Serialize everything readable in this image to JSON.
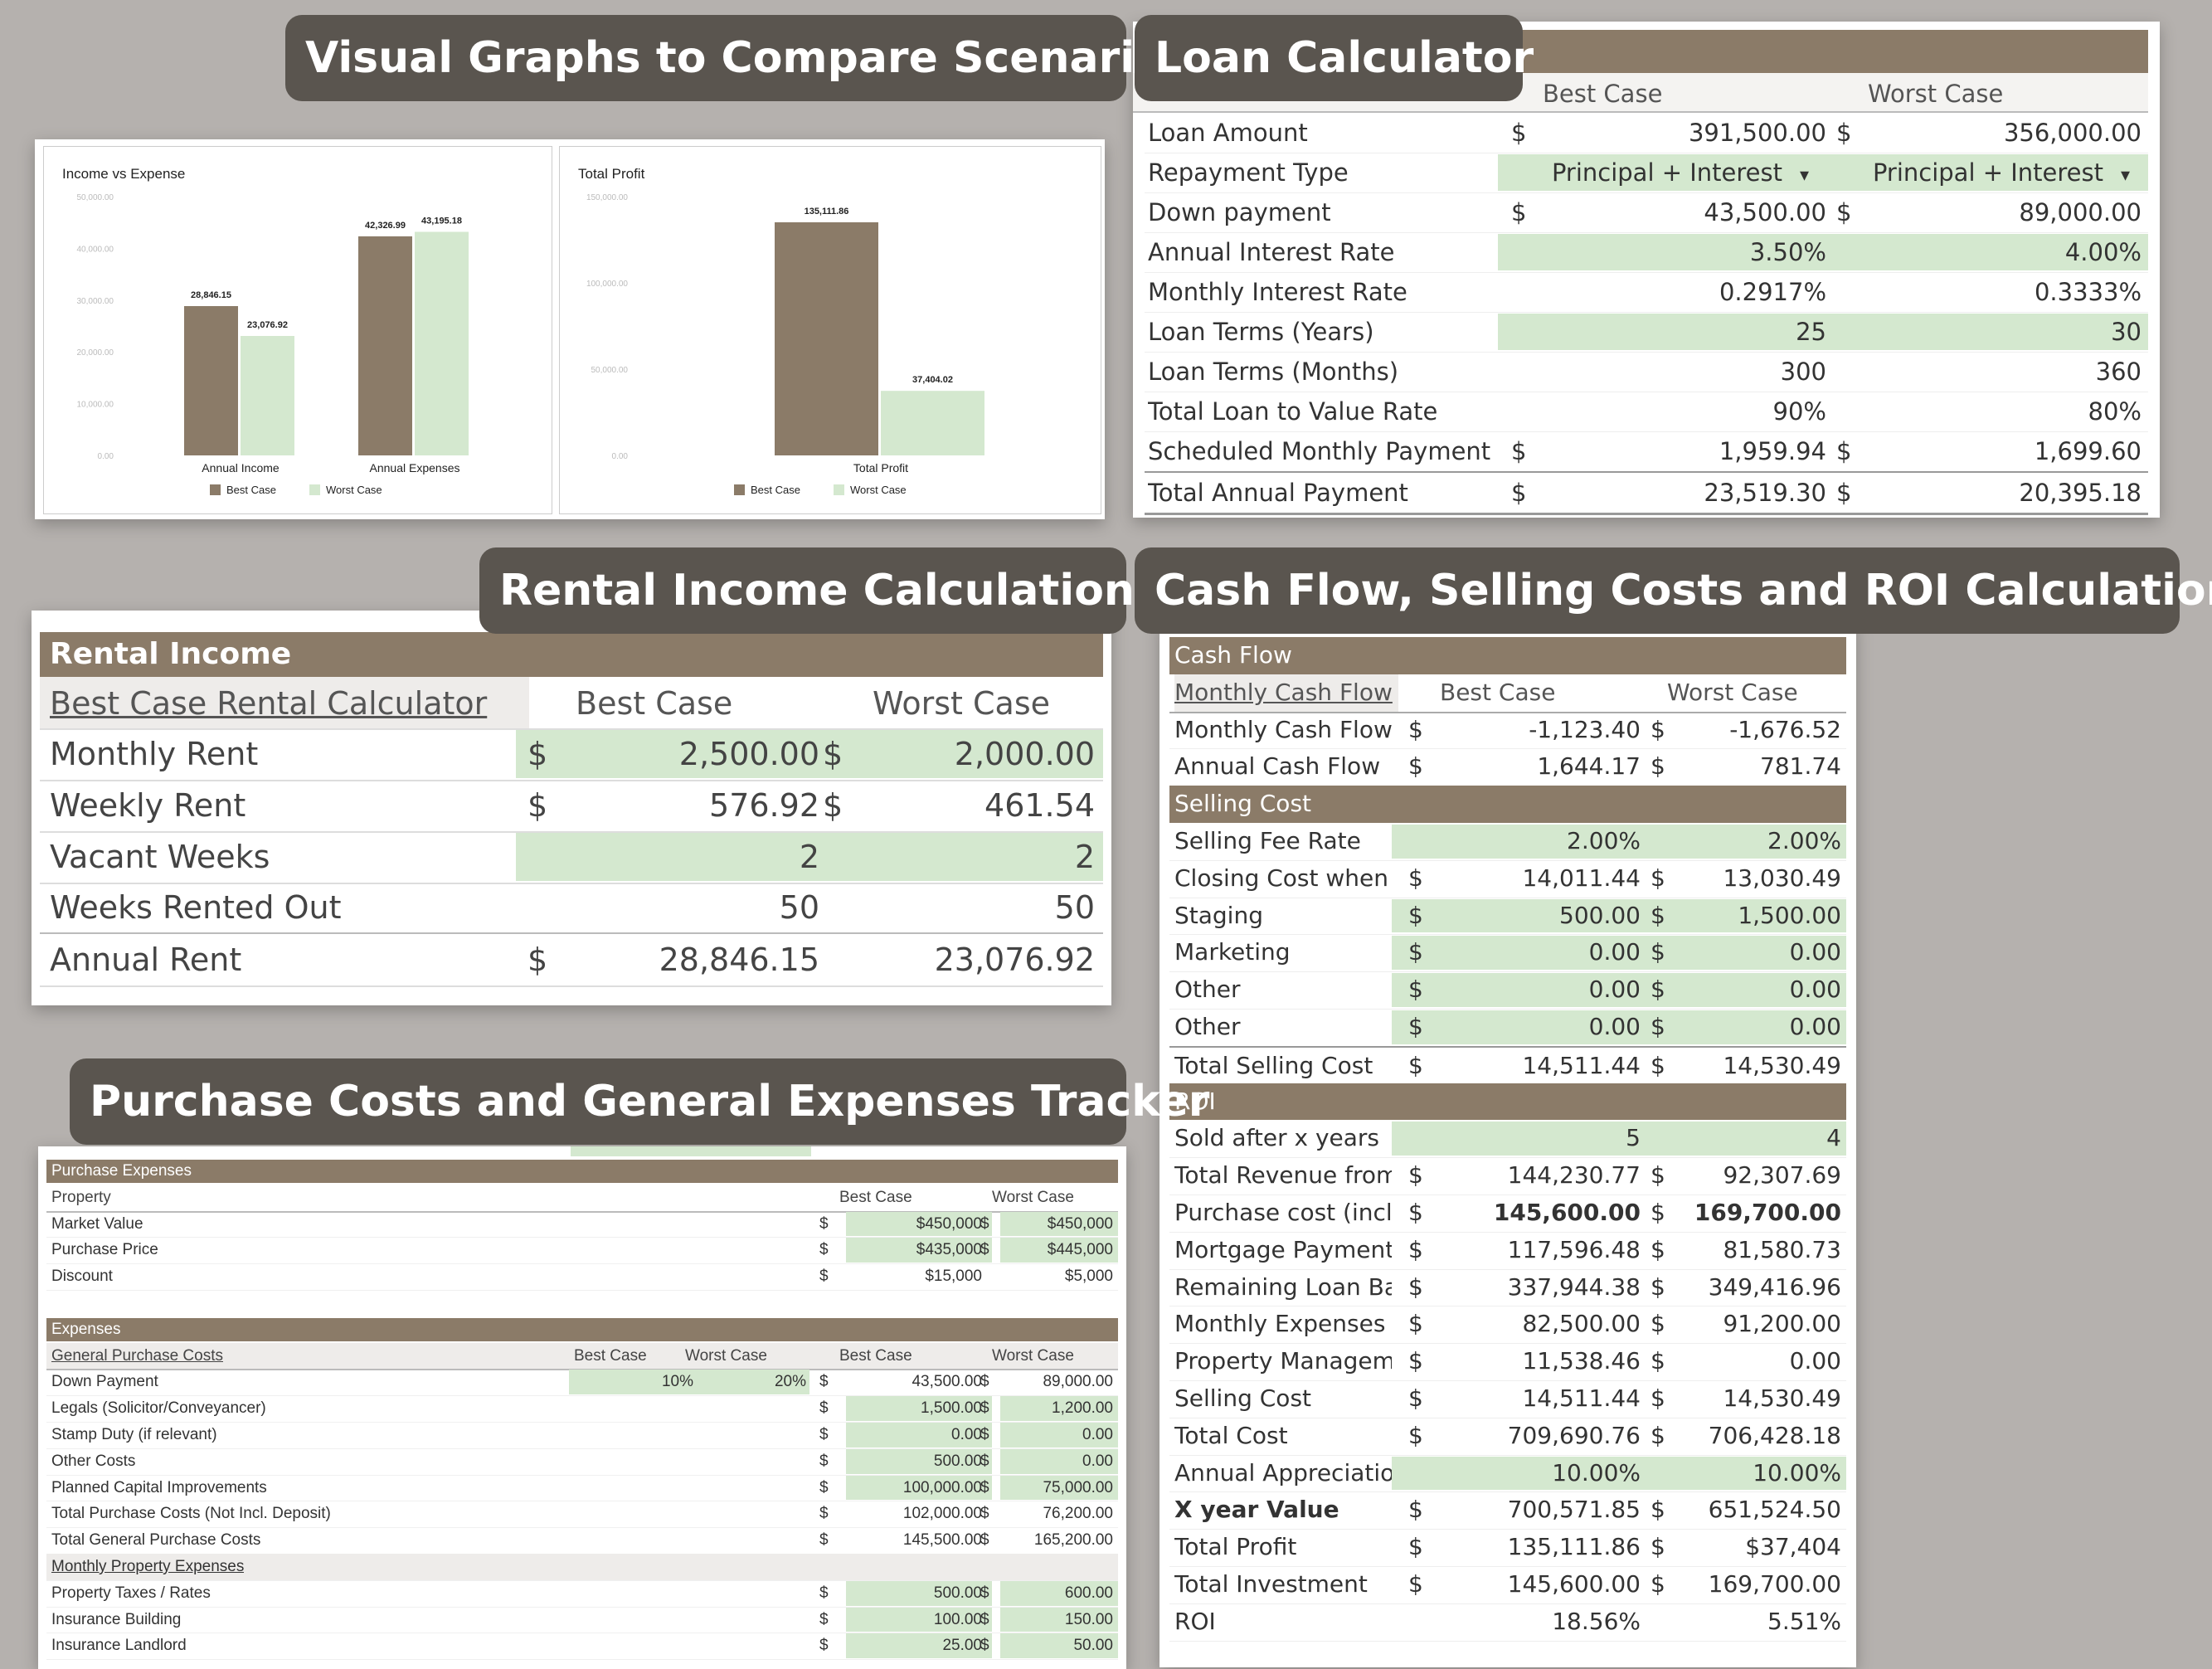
{
  "headings": {
    "graphs": "Visual Graphs to Compare Scenarios",
    "loan": "Loan Calculator",
    "rental": "Rental Income Calculations",
    "cashflow": "Cash Flow, Selling Costs and ROI Calculations",
    "purchase": "Purchase Costs and General Expenses Tracker"
  },
  "legend": {
    "best": "Best Case",
    "worst": "Worst Case"
  },
  "colors": {
    "brown": "#8b7b68",
    "green": "#d4e8cf",
    "tag_bg": "#5a554f"
  },
  "chart_data": [
    {
      "type": "bar",
      "title": "Income vs Expense",
      "categories": [
        "Annual Income",
        "Annual Expenses"
      ],
      "series": [
        {
          "name": "Best Case",
          "values": [
            28846.15,
            42326.99
          ]
        },
        {
          "name": "Worst Case",
          "values": [
            23076.92,
            43195.18
          ]
        }
      ],
      "value_labels": [
        [
          "28,846.15",
          "42,326.99"
        ],
        [
          "23,076.92",
          "43,195.18"
        ]
      ],
      "yticks": [
        "50,000.00",
        "40,000.00",
        "30,000.00",
        "20,000.00",
        "10,000.00",
        "0.00"
      ],
      "ylim": [
        0,
        50000
      ],
      "legend_position": "bottom"
    },
    {
      "type": "bar",
      "title": "Total Profit",
      "categories": [
        "Total Profit"
      ],
      "series": [
        {
          "name": "Best Case",
          "values": [
            135111.86
          ]
        },
        {
          "name": "Worst Case",
          "values": [
            37404.02
          ]
        }
      ],
      "value_labels": [
        [
          "135,111.86"
        ],
        [
          "37,404.02"
        ]
      ],
      "yticks": [
        "150,000.00",
        "100,000.00",
        "50,000.00",
        "0.00"
      ],
      "ylim": [
        0,
        150000
      ],
      "legend_position": "bottom"
    }
  ],
  "loan": {
    "header": {
      "best": "Best Case",
      "worst": "Worst Case"
    },
    "rows": [
      {
        "label": "Loan Amount",
        "d1": "$",
        "v1": "391,500.00",
        "d2": "$",
        "v2": "356,000.00",
        "green": false
      },
      {
        "label": "Repayment Type",
        "d1": "",
        "v1": "Principal + Interest",
        "d2": "",
        "v2": "Principal + Interest",
        "green": true,
        "dropdown": true
      },
      {
        "label": "Down payment",
        "d1": "$",
        "v1": "43,500.00",
        "d2": "$",
        "v2": "89,000.00",
        "green": false
      },
      {
        "label": "Annual Interest Rate",
        "d1": "",
        "v1": "3.50%",
        "d2": "",
        "v2": "4.00%",
        "green": true
      },
      {
        "label": "Monthly Interest Rate",
        "d1": "",
        "v1": "0.2917%",
        "d2": "",
        "v2": "0.3333%",
        "green": false
      },
      {
        "label": "Loan Terms (Years)",
        "d1": "",
        "v1": "25",
        "d2": "",
        "v2": "30",
        "green": true
      },
      {
        "label": "Loan Terms (Months)",
        "d1": "",
        "v1": "300",
        "d2": "",
        "v2": "360",
        "green": false
      },
      {
        "label": "Total Loan to Value Rate",
        "d1": "",
        "v1": "90%",
        "d2": "",
        "v2": "80%",
        "green": false
      },
      {
        "label": "Scheduled Monthly Payment",
        "d1": "$",
        "v1": "1,959.94",
        "d2": "$",
        "v2": "1,699.60",
        "green": false
      },
      {
        "label": "Total Annual Payment",
        "d1": "$",
        "v1": "23,519.30",
        "d2": "$",
        "v2": "20,395.18",
        "green": false
      }
    ]
  },
  "rental": {
    "title": "Rental Income",
    "header": {
      "label": "Best Case Rental Calculator",
      "best": "Best Case",
      "worst": "Worst Case"
    },
    "rows": [
      {
        "label": "Monthly Rent",
        "d1": "$",
        "v1": "2,500.00",
        "d2": "$",
        "v2": "2,000.00",
        "green": true
      },
      {
        "label": "Weekly Rent",
        "d1": "$",
        "v1": "576.92",
        "d2": "$",
        "v2": "461.54",
        "green": false
      },
      {
        "label": "Vacant Weeks",
        "d1": "",
        "v1": "2",
        "d2": "",
        "v2": "2",
        "green": true
      },
      {
        "label": "Weeks Rented Out",
        "d1": "",
        "v1": "50",
        "d2": "",
        "v2": "50",
        "green": false
      },
      {
        "label": "Annual Rent",
        "d1": "$",
        "v1": "28,846.15",
        "d2": "",
        "v2": "23,076.92",
        "green": false
      }
    ]
  },
  "cashflow": {
    "rows": [
      {
        "kind": "section",
        "label": "Cash Flow"
      },
      {
        "kind": "header",
        "label": "Monthly Cash Flow",
        "v1": "Best Case",
        "v2": "Worst Case"
      },
      {
        "kind": "row",
        "label": "Monthly Cash Flow",
        "d1": "$",
        "v1": "-1,123.40",
        "d2": "$",
        "v2": "-1,676.52"
      },
      {
        "kind": "row",
        "label": "Annual Cash Flow",
        "d1": "$",
        "v1": "1,644.17",
        "d2": "$",
        "v2": "781.74"
      },
      {
        "kind": "section",
        "label": "Selling Cost"
      },
      {
        "kind": "row",
        "label": "Selling Fee Rate",
        "d1": "",
        "v1": "2.00%",
        "d2": "",
        "v2": "2.00%",
        "green": true
      },
      {
        "kind": "row",
        "label": "Closing Cost when s",
        "d1": "$",
        "v1": "14,011.44",
        "d2": "$",
        "v2": "13,030.49"
      },
      {
        "kind": "row",
        "label": "Staging",
        "d1": "$",
        "v1": "500.00",
        "d2": "$",
        "v2": "1,500.00",
        "green": true
      },
      {
        "kind": "row",
        "label": "Marketing",
        "d1": "$",
        "v1": "0.00",
        "d2": "$",
        "v2": "0.00",
        "green": true
      },
      {
        "kind": "row",
        "label": "Other",
        "d1": "$",
        "v1": "0.00",
        "d2": "$",
        "v2": "0.00",
        "green": true
      },
      {
        "kind": "row",
        "label": "Other",
        "d1": "$",
        "v1": "0.00",
        "d2": "$",
        "v2": "0.00",
        "green": true
      },
      {
        "kind": "row",
        "label": "Total Selling Cost",
        "d1": "$",
        "v1": "14,511.44",
        "d2": "$",
        "v2": "14,530.49",
        "top": true
      },
      {
        "kind": "section",
        "label": "ROI"
      },
      {
        "kind": "row",
        "label": "Sold after x years",
        "d1": "",
        "v1": "5",
        "d2": "",
        "v2": "4",
        "green": true
      },
      {
        "kind": "row",
        "label": "Total Revenue from",
        "d1": "$",
        "v1": "144,230.77",
        "d2": "$",
        "v2": "92,307.69"
      },
      {
        "kind": "row",
        "label": "Purchase cost (incl. ",
        "d1": "$",
        "v1": "145,600.00",
        "d2": "$",
        "v2": "169,700.00",
        "bold": true
      },
      {
        "kind": "row",
        "label": "Mortgage Payment",
        "d1": "$",
        "v1": "117,596.48",
        "d2": "$",
        "v2": "81,580.73"
      },
      {
        "kind": "row",
        "label": "Remaining Loan Bal",
        "d1": "$",
        "v1": "337,944.38",
        "d2": "$",
        "v2": "349,416.96"
      },
      {
        "kind": "row",
        "label": "Monthly Expenses",
        "d1": "$",
        "v1": "82,500.00",
        "d2": "$",
        "v2": "91,200.00"
      },
      {
        "kind": "row",
        "label": "Property Manageme",
        "d1": "$",
        "v1": "11,538.46",
        "d2": "$",
        "v2": "0.00"
      },
      {
        "kind": "row",
        "label": "Selling Cost",
        "d1": "$",
        "v1": "14,511.44",
        "d2": "$",
        "v2": "14,530.49"
      },
      {
        "kind": "row",
        "label": "Total Cost",
        "d1": "$",
        "v1": "709,690.76",
        "d2": "$",
        "v2": "706,428.18"
      },
      {
        "kind": "row",
        "label": "Annual Appreciation Ra",
        "d1": "",
        "v1": "10.00%",
        "d2": "",
        "v2": "10.00%",
        "green": true
      },
      {
        "kind": "row",
        "label": "X year Value",
        "d1": "$",
        "v1": "700,571.85",
        "d2": "$",
        "v2": "651,524.50",
        "boldlabel": true
      },
      {
        "kind": "row",
        "label": "Total Profit",
        "d1": "$",
        "v1": "135,111.86",
        "d2": "$",
        "v2": "$37,404"
      },
      {
        "kind": "row",
        "label": "Total Investment",
        "d1": "$",
        "v1": "145,600.00",
        "d2": "$",
        "v2": "169,700.00"
      },
      {
        "kind": "row",
        "label": "ROI",
        "d1": "",
        "v1": "18.56%",
        "d2": "",
        "v2": "5.51%"
      }
    ]
  },
  "purchase": {
    "rows": [
      {
        "kind": "section",
        "label": "Purchase Expenses"
      },
      {
        "kind": "header",
        "label": "Property",
        "v1": "Best Case",
        "v2": "Worst Case"
      },
      {
        "kind": "row",
        "label": "Market Value",
        "d1": "$",
        "v1": "$450,000",
        "d2": "$",
        "v2": "$450,000",
        "green": true
      },
      {
        "kind": "row",
        "label": "Purchase Price",
        "d1": "$",
        "v1": "$435,000",
        "d2": "$",
        "v2": "$445,000",
        "green": true
      },
      {
        "kind": "row",
        "label": "Discount",
        "d1": "$",
        "v1": "$15,000",
        "d2": "",
        "v2": "$5,000"
      },
      {
        "kind": "blank"
      },
      {
        "kind": "section",
        "label": "Expenses"
      },
      {
        "kind": "header4",
        "label": "General Purchase Costs",
        "p1": "Best Case",
        "p2": "Worst Case",
        "v1": "Best Case",
        "v2": "Worst Case"
      },
      {
        "kind": "row",
        "label": "Down Payment",
        "pp1": "10%",
        "pp2": "20%",
        "d1": "$",
        "v1": "43,500.00",
        "d2": "$",
        "v2": "89,000.00"
      },
      {
        "kind": "row",
        "label": "Legals (Solicitor/Conveyancer)",
        "d1": "$",
        "v1": "1,500.00",
        "d2": "$",
        "v2": "1,200.00",
        "green": true
      },
      {
        "kind": "row",
        "label": "Stamp Duty (if relevant)",
        "d1": "$",
        "v1": "0.00",
        "d2": "$",
        "v2": "0.00",
        "green": true
      },
      {
        "kind": "row",
        "label": "Other Costs",
        "d1": "$",
        "v1": "500.00",
        "d2": "$",
        "v2": "0.00",
        "green": true
      },
      {
        "kind": "row",
        "label": "Planned Capital Improvements",
        "d1": "$",
        "v1": "100,000.00",
        "d2": "$",
        "v2": "75,000.00",
        "green": true
      },
      {
        "kind": "row",
        "label": "Total Purchase Costs (Not Incl. Deposit)",
        "d1": "$",
        "v1": "102,000.00",
        "d2": "$",
        "v2": "76,200.00"
      },
      {
        "kind": "row",
        "label": "Total General Purchase Costs",
        "d1": "$",
        "v1": "145,500.00",
        "d2": "$",
        "v2": "165,200.00"
      },
      {
        "kind": "subheader",
        "label": "Monthly Property Expenses"
      },
      {
        "kind": "row",
        "label": "Property Taxes / Rates",
        "d1": "$",
        "v1": "500.00",
        "d2": "$",
        "v2": "600.00",
        "green": true
      },
      {
        "kind": "row",
        "label": "Insurance Building",
        "d1": "$",
        "v1": "100.00",
        "d2": "$",
        "v2": "150.00",
        "green": true
      },
      {
        "kind": "row",
        "label": "Insurance Landlord",
        "d1": "$",
        "v1": "25.00",
        "d2": "$",
        "v2": "50.00",
        "green": true
      }
    ]
  }
}
